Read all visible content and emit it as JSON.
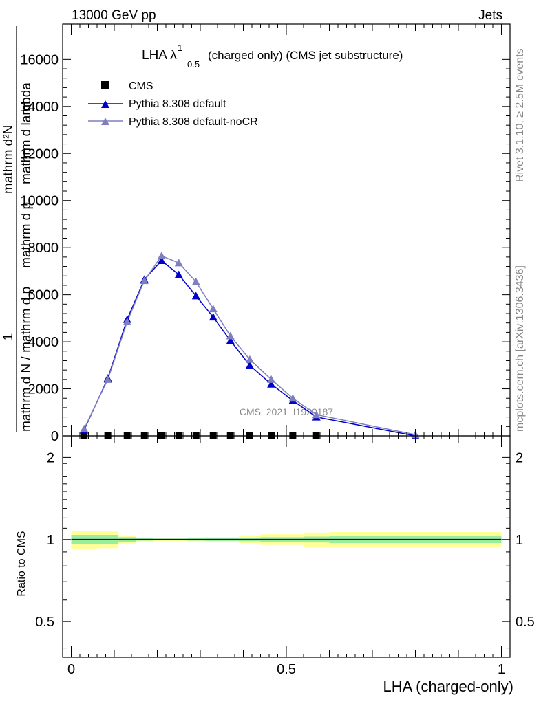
{
  "header": {
    "left_label": "13000 GeV pp",
    "right_label": "Jets"
  },
  "plot_title": {
    "main": "LHA λ",
    "superscript": "1",
    "subscript": "0.5",
    "suffix": "(charged only) (CMS jet substructure)"
  },
  "side_labels": {
    "rivet": "Rivet 3.1.10, ≥ 2.5M events",
    "mcplots": "mcplots.cern.ch [arXiv:1306.3436]"
  },
  "watermark": "CMS_2021_I1920187",
  "ylabel_main": {
    "numerator": "1",
    "denominator": "mathrm d N / mathrm d p",
    "overlay_numerator": "mathrm d²N",
    "overlay_denominator": "mathrm d p",
    "overlay_denominator_extra": "mathrm d lambda"
  },
  "ratio_ylabel": "Ratio to CMS",
  "xlabel": "LHA (charged-only)",
  "colors": {
    "cms": "#000000",
    "default": "#0000cc",
    "nocr": "#7f7fbf",
    "band_inner": "#99ee99",
    "band_outer": "#ffff99"
  },
  "chart_data": [
    {
      "type": "line",
      "xlim": [
        -0.02,
        1.02
      ],
      "ylim": [
        0,
        17500
      ],
      "yticks": [
        0,
        2000,
        4000,
        6000,
        8000,
        10000,
        12000,
        14000,
        16000
      ],
      "ytick_labels": [
        "0",
        "2000",
        "4000",
        "6000",
        "8000",
        "10000",
        "12000",
        "14000",
        "16000"
      ],
      "legend_position": "top-left",
      "series": [
        {
          "name": "CMS",
          "marker": "square",
          "x": [
            0.03,
            0.085,
            0.13,
            0.17,
            0.21,
            0.25,
            0.29,
            0.33,
            0.37,
            0.415,
            0.465,
            0.515,
            0.57
          ],
          "y": [
            0,
            0,
            0,
            0,
            0,
            0,
            0,
            0,
            0,
            0,
            0,
            0,
            0
          ]
        },
        {
          "name": "Pythia 8.308 default",
          "marker": "triangle",
          "x": [
            0.03,
            0.085,
            0.13,
            0.17,
            0.21,
            0.25,
            0.29,
            0.33,
            0.37,
            0.415,
            0.465,
            0.515,
            0.57,
            0.8
          ],
          "y": [
            250,
            2450,
            4950,
            6650,
            7450,
            6850,
            5950,
            5050,
            4050,
            3000,
            2200,
            1500,
            800,
            0
          ]
        },
        {
          "name": "Pythia 8.308 default-noCR",
          "marker": "triangle",
          "x": [
            0.03,
            0.085,
            0.13,
            0.17,
            0.21,
            0.25,
            0.29,
            0.33,
            0.37,
            0.415,
            0.465,
            0.515,
            0.57,
            0.8
          ],
          "y": [
            300,
            2400,
            4850,
            6600,
            7650,
            7350,
            6550,
            5400,
            4250,
            3250,
            2400,
            1600,
            900,
            50
          ]
        }
      ]
    },
    {
      "type": "line",
      "xlim": [
        -0.02,
        1.02
      ],
      "ylim": [
        0.37,
        2.4
      ],
      "log_scale": true,
      "yticks": [
        0.5,
        1,
        2
      ],
      "ytick_labels": [
        "0.5",
        "1",
        "2"
      ],
      "xticks": [
        0,
        0.5,
        1
      ],
      "xtick_labels": [
        "0",
        "0.5",
        "1"
      ],
      "bands": {
        "edges": [
          0,
          0.06,
          0.11,
          0.15,
          0.19,
          0.23,
          0.27,
          0.31,
          0.35,
          0.39,
          0.44,
          0.49,
          0.54,
          0.6,
          1.0
        ],
        "inner": [
          0.04,
          0.04,
          0.02,
          0.01,
          0.008,
          0.008,
          0.01,
          0.012,
          0.012,
          0.015,
          0.02,
          0.02,
          0.025,
          0.03
        ],
        "outer": [
          0.075,
          0.07,
          0.035,
          0.02,
          0.015,
          0.015,
          0.018,
          0.022,
          0.022,
          0.03,
          0.045,
          0.045,
          0.06,
          0.065
        ]
      },
      "reference_value": 1
    }
  ]
}
